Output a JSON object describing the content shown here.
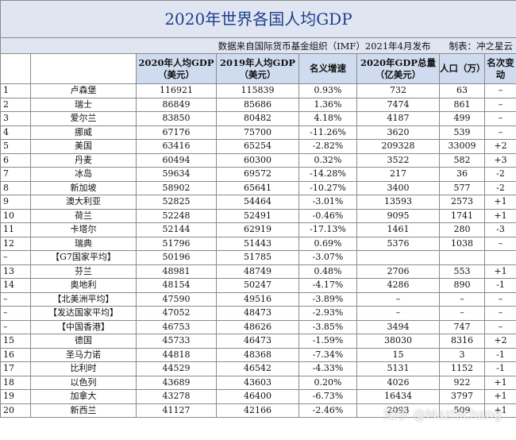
{
  "title": "2020年世界各国人均GDP",
  "subtitle": "数据来自国际货币基金组织（IMF）2021年4月发布　　制表：冲之星云",
  "headers": {
    "gdp2020": "2020年人均GDP（美元）",
    "gdp2019": "2019年人均GDP（美元）",
    "growth": "名义增速",
    "total": "2020年GDP总量（亿美元）",
    "pop": "人口（万）",
    "rank_change": "名次变动"
  },
  "rows": [
    {
      "no": "1",
      "name": "卢森堡",
      "g20": "116921",
      "g19": "115839",
      "gr": "0.93%",
      "tot": "732",
      "pop": "63",
      "chg": "–"
    },
    {
      "no": "2",
      "name": "瑞士",
      "g20": "86849",
      "g19": "85686",
      "gr": "1.36%",
      "tot": "7474",
      "pop": "861",
      "chg": "–"
    },
    {
      "no": "3",
      "name": "爱尔兰",
      "g20": "83850",
      "g19": "80482",
      "gr": "4.18%",
      "tot": "4187",
      "pop": "499",
      "chg": "–"
    },
    {
      "no": "4",
      "name": "挪威",
      "g20": "67176",
      "g19": "75700",
      "gr": "-11.26%",
      "tot": "3620",
      "pop": "539",
      "chg": "–"
    },
    {
      "no": "5",
      "name": "美国",
      "g20": "63416",
      "g19": "65254",
      "gr": "-2.82%",
      "tot": "209328",
      "pop": "33009",
      "chg": "+2"
    },
    {
      "no": "6",
      "name": "丹麦",
      "g20": "60494",
      "g19": "60300",
      "gr": "0.32%",
      "tot": "3522",
      "pop": "582",
      "chg": "+3"
    },
    {
      "no": "7",
      "name": "冰岛",
      "g20": "59634",
      "g19": "69572",
      "gr": "-14.28%",
      "tot": "217",
      "pop": "36",
      "chg": "-2"
    },
    {
      "no": "8",
      "name": "新加坡",
      "g20": "58902",
      "g19": "65641",
      "gr": "-10.27%",
      "tot": "3400",
      "pop": "577",
      "chg": "-2"
    },
    {
      "no": "9",
      "name": "澳大利亚",
      "g20": "52825",
      "g19": "54464",
      "gr": "-3.01%",
      "tot": "13593",
      "pop": "2573",
      "chg": "+1"
    },
    {
      "no": "10",
      "name": "荷兰",
      "g20": "52248",
      "g19": "52491",
      "gr": "-0.46%",
      "tot": "9095",
      "pop": "1741",
      "chg": "+1"
    },
    {
      "no": "11",
      "name": "卡塔尔",
      "g20": "52144",
      "g19": "62919",
      "gr": "-17.13%",
      "tot": "1461",
      "pop": "280",
      "chg": "-3"
    },
    {
      "no": "12",
      "name": "瑞典",
      "g20": "51796",
      "g19": "51443",
      "gr": "0.69%",
      "tot": "5376",
      "pop": "1038",
      "chg": "–"
    },
    {
      "no": "–",
      "name": "【G7国家平均】",
      "g20": "50196",
      "g19": "51785",
      "gr": "-3.07%",
      "tot": "",
      "pop": "",
      "chg": ""
    },
    {
      "no": "13",
      "name": "芬兰",
      "g20": "48981",
      "g19": "48749",
      "gr": "0.48%",
      "tot": "2706",
      "pop": "553",
      "chg": "+1"
    },
    {
      "no": "14",
      "name": "奥地利",
      "g20": "48154",
      "g19": "50247",
      "gr": "-4.17%",
      "tot": "4286",
      "pop": "890",
      "chg": "-1"
    },
    {
      "no": "–",
      "name": "【北美洲平均】",
      "g20": "47590",
      "g19": "49516",
      "gr": "-3.89%",
      "tot": "–",
      "pop": "–",
      "chg": "–"
    },
    {
      "no": "–",
      "name": "【发达国家平均】",
      "g20": "47052",
      "g19": "48473",
      "gr": "-2.93%",
      "tot": "–",
      "pop": "–",
      "chg": "–"
    },
    {
      "no": "–",
      "name": "【中国香港】",
      "g20": "46753",
      "g19": "48626",
      "gr": "-3.85%",
      "tot": "3494",
      "pop": "747",
      "chg": "–"
    },
    {
      "no": "15",
      "name": "德国",
      "g20": "45733",
      "g19": "46473",
      "gr": "-1.59%",
      "tot": "38030",
      "pop": "8316",
      "chg": "+2"
    },
    {
      "no": "16",
      "name": "圣马力诺",
      "g20": "44818",
      "g19": "48368",
      "gr": "-7.34%",
      "tot": "15",
      "pop": "3",
      "chg": "-1"
    },
    {
      "no": "17",
      "name": "比利时",
      "g20": "44529",
      "g19": "46542",
      "gr": "-4.33%",
      "tot": "5131",
      "pop": "1152",
      "chg": "-1"
    },
    {
      "no": "18",
      "name": "以色列",
      "g20": "43689",
      "g19": "43603",
      "gr": "0.20%",
      "tot": "4026",
      "pop": "922",
      "chg": "+1"
    },
    {
      "no": "19",
      "name": "加拿大",
      "g20": "43278",
      "g19": "46400",
      "gr": "-6.73%",
      "tot": "16434",
      "pop": "3797",
      "chg": "+1"
    },
    {
      "no": "20",
      "name": "新西兰",
      "g20": "41127",
      "g19": "42166",
      "gr": "-2.46%",
      "tot": "2093",
      "pop": "509",
      "chg": "+1"
    }
  ],
  "watermark": "知乎 @Mazhichang"
}
